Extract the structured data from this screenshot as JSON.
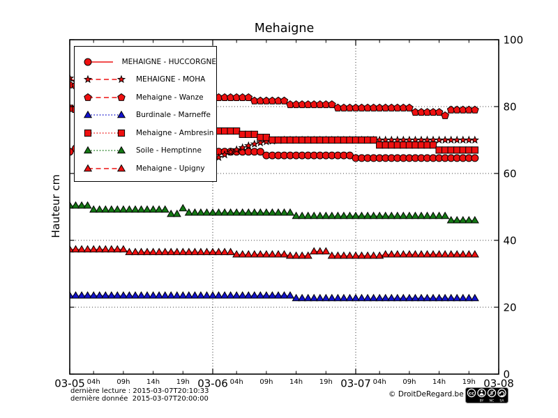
{
  "footer": {
    "last_reading": "dernière lecture : 2015-03-07T20:10:33",
    "last_data": "dernière donnée  2015-03-07T20:00:00",
    "copyright": "© DroitDeRegard.be",
    "license": {
      "badge": "cc",
      "terms": [
        "BY",
        "NC",
        "SA"
      ]
    }
  },
  "chart_data": {
    "type": "line",
    "title": "Mehaigne",
    "ylabel": "Hauteur cm",
    "ylim": [
      0,
      100
    ],
    "yticks": [
      0,
      20,
      40,
      60,
      80,
      100
    ],
    "ygrid": [
      20,
      40,
      60,
      80
    ],
    "grid": "dotted",
    "legend_position": "upper-left",
    "x_major_ticks": [
      {
        "hour": 0,
        "label": "03-05"
      },
      {
        "hour": 24,
        "label": "03-06"
      },
      {
        "hour": 48,
        "label": "03-07"
      },
      {
        "hour": 72,
        "label": "03-08"
      }
    ],
    "x_minor_ticks": [
      {
        "offset": 4,
        "label": "04h"
      },
      {
        "offset": 9,
        "label": "09h"
      },
      {
        "offset": 14,
        "label": "14h"
      },
      {
        "offset": 19,
        "label": "19h"
      }
    ],
    "x_day_starts": [
      0,
      24,
      48
    ],
    "vgrid_hours": [
      24,
      48
    ],
    "x_hours_span": 72,
    "step_hours": 1,
    "series": [
      {
        "name": "MEHAIGNE - HUCCORGNE",
        "color": "#ee1010",
        "marker": "circle",
        "line": "solid",
        "marker_size": 5,
        "values": [
          66.5,
          67.5,
          69,
          69,
          69,
          68.5,
          68.5,
          68,
          68,
          68,
          67.5,
          67.5,
          67,
          67,
          67,
          66.5,
          66.5,
          66,
          66,
          65.5,
          65.5,
          65,
          64.5,
          64,
          63.5,
          66.5,
          66.5,
          66.5,
          66.5,
          66.5,
          66.5,
          66.5,
          66.5,
          65.4,
          65.4,
          65.4,
          65.4,
          65.4,
          65.4,
          65.4,
          65.4,
          65.4,
          65.4,
          65.4,
          65.4,
          65.4,
          65.4,
          65.4,
          64.6,
          64.6,
          64.6,
          64.6,
          64.6,
          64.6,
          64.6,
          64.6,
          64.6,
          64.6,
          64.6,
          64.6,
          64.6,
          64.6,
          64.6,
          64.6,
          64.6,
          64.6,
          64.6,
          64.6,
          64.6
        ]
      },
      {
        "name": "MEHAIGNE - MOHA",
        "color": "#ee1010",
        "marker": "star",
        "line": "dashed",
        "marker_size": 5,
        "values": [
          88.5,
          87.5,
          86.5,
          85.5,
          84.5,
          83.5,
          82.5,
          81.5,
          80.5,
          79.5,
          78.5,
          77.5,
          76.5,
          75.5,
          74.5,
          73.5,
          72.5,
          71.5,
          70.5,
          69.5,
          68,
          67,
          66,
          65,
          64,
          64.8,
          65.6,
          66.4,
          67.1,
          67.7,
          68.3,
          68.8,
          69.2,
          69.5,
          69.7,
          69.9,
          70,
          70,
          70,
          70,
          70,
          70,
          70,
          70,
          70,
          70,
          70,
          70,
          70,
          70,
          70,
          70,
          70,
          70,
          70,
          70,
          70,
          70,
          70,
          70,
          70,
          70,
          70,
          70,
          70,
          70,
          70,
          70,
          70
        ]
      },
      {
        "name": "Mehaigne - Wanze",
        "color": "#ee1010",
        "marker": "pentagon",
        "line": "dashed",
        "marker_size": 5.5,
        "values": [
          86.5,
          86.3,
          86,
          85.8,
          85.5,
          85.3,
          85,
          84.8,
          84.6,
          84.4,
          84.2,
          84,
          83.8,
          83.7,
          83.5,
          83.4,
          83.3,
          83.2,
          83.1,
          83,
          82.9,
          82.8,
          82.7,
          82.7,
          82.7,
          82.7,
          82.7,
          82.7,
          82.7,
          82.7,
          82.7,
          81.7,
          81.7,
          81.7,
          81.7,
          81.7,
          81.7,
          80.6,
          80.6,
          80.6,
          80.6,
          80.6,
          80.6,
          80.6,
          80.6,
          79.6,
          79.6,
          79.6,
          79.6,
          79.6,
          79.6,
          79.6,
          79.6,
          79.6,
          79.6,
          79.6,
          79.6,
          79.6,
          78.3,
          78.3,
          78.3,
          78.3,
          78.3,
          77.3,
          79,
          79,
          79,
          79,
          79
        ]
      },
      {
        "name": "Burdinale - Marneffe",
        "color": "#1212cc",
        "marker": "triangle",
        "line": "dotted",
        "marker_size": 6,
        "values": [
          23.5,
          23.5,
          23.5,
          23.5,
          23.5,
          23.5,
          23.5,
          23.5,
          23.5,
          23.5,
          23.5,
          23.5,
          23.5,
          23.5,
          23.5,
          23.5,
          23.5,
          23.5,
          23.5,
          23.5,
          23.5,
          23.5,
          23.5,
          23.5,
          23.5,
          23.5,
          23.5,
          23.5,
          23.5,
          23.5,
          23.5,
          23.5,
          23.5,
          23.5,
          23.5,
          23.5,
          23.5,
          23.5,
          22.7,
          22.7,
          22.7,
          22.7,
          22.7,
          22.7,
          22.7,
          22.7,
          22.7,
          22.7,
          22.7,
          22.7,
          22.7,
          22.7,
          22.7,
          22.7,
          22.7,
          22.7,
          22.7,
          22.7,
          22.7,
          22.7,
          22.7,
          22.7,
          22.7,
          22.7,
          22.7,
          22.7,
          22.7,
          22.7,
          22.7
        ]
      },
      {
        "name": "Mehaigne - Ambresin",
        "color": "#ee1010",
        "marker": "square",
        "line": "dotted",
        "marker_size": 4.6,
        "values": [
          79.5,
          79.2,
          78.9,
          78.6,
          78.3,
          78,
          77.7,
          77.4,
          77.1,
          76.8,
          76.5,
          76.2,
          75.9,
          75.6,
          75.3,
          75,
          74.7,
          74.4,
          74.1,
          73.8,
          73.5,
          73.3,
          73.1,
          73,
          72.7,
          72.7,
          72.7,
          72.7,
          72.7,
          71.7,
          71.7,
          71.7,
          70.8,
          70.8,
          70,
          70,
          70,
          70,
          70,
          70,
          70,
          70,
          70,
          70,
          70,
          70,
          70,
          70,
          70,
          70,
          70,
          70,
          68.5,
          68.5,
          68.5,
          68.5,
          68.5,
          68.5,
          68.5,
          68.5,
          68.5,
          68.5,
          67,
          67,
          67,
          67,
          67,
          67,
          67
        ]
      },
      {
        "name": "Soile - Hemptinne",
        "color": "#147814",
        "marker": "triangle",
        "line": "dotted",
        "marker_size": 6,
        "values": [
          50.4,
          50.4,
          50.4,
          50.4,
          49.2,
          49.2,
          49.2,
          49.2,
          49.2,
          49.2,
          49.2,
          49.2,
          49.2,
          49.2,
          49.2,
          49.2,
          49.2,
          47.9,
          47.9,
          49.6,
          48.3,
          48.3,
          48.3,
          48.3,
          48.3,
          48.3,
          48.3,
          48.3,
          48.3,
          48.3,
          48.3,
          48.3,
          48.3,
          48.3,
          48.3,
          48.3,
          48.3,
          48.3,
          47.3,
          47.3,
          47.3,
          47.3,
          47.3,
          47.3,
          47.3,
          47.3,
          47.3,
          47.3,
          47.3,
          47.3,
          47.3,
          47.3,
          47.3,
          47.3,
          47.3,
          47.3,
          47.3,
          47.3,
          47.3,
          47.3,
          47.3,
          47.3,
          47.3,
          47.3,
          46,
          46,
          46,
          46,
          46
        ]
      },
      {
        "name": "Mehaigne - Upigny",
        "color": "#ee1010",
        "marker": "triangle",
        "line": "dashed",
        "marker_size": 6,
        "values": [
          37.3,
          37.3,
          37.3,
          37.3,
          37.3,
          37.3,
          37.3,
          37.3,
          37.3,
          37.3,
          36.5,
          36.5,
          36.5,
          36.5,
          36.5,
          36.5,
          36.5,
          36.5,
          36.5,
          36.5,
          36.5,
          36.5,
          36.5,
          36.5,
          36.5,
          36.5,
          36.5,
          36.5,
          35.8,
          35.8,
          35.8,
          35.8,
          35.8,
          35.8,
          35.8,
          35.8,
          35.8,
          35.4,
          35.4,
          35.4,
          35.4,
          36.7,
          36.7,
          36.7,
          35.4,
          35.4,
          35.4,
          35.4,
          35.4,
          35.4,
          35.4,
          35.4,
          35.4,
          35.8,
          35.8,
          35.8,
          35.8,
          35.8,
          35.8,
          35.8,
          35.8,
          35.8,
          35.8,
          35.8,
          35.8,
          35.8,
          35.8,
          35.8,
          35.8
        ]
      }
    ]
  }
}
